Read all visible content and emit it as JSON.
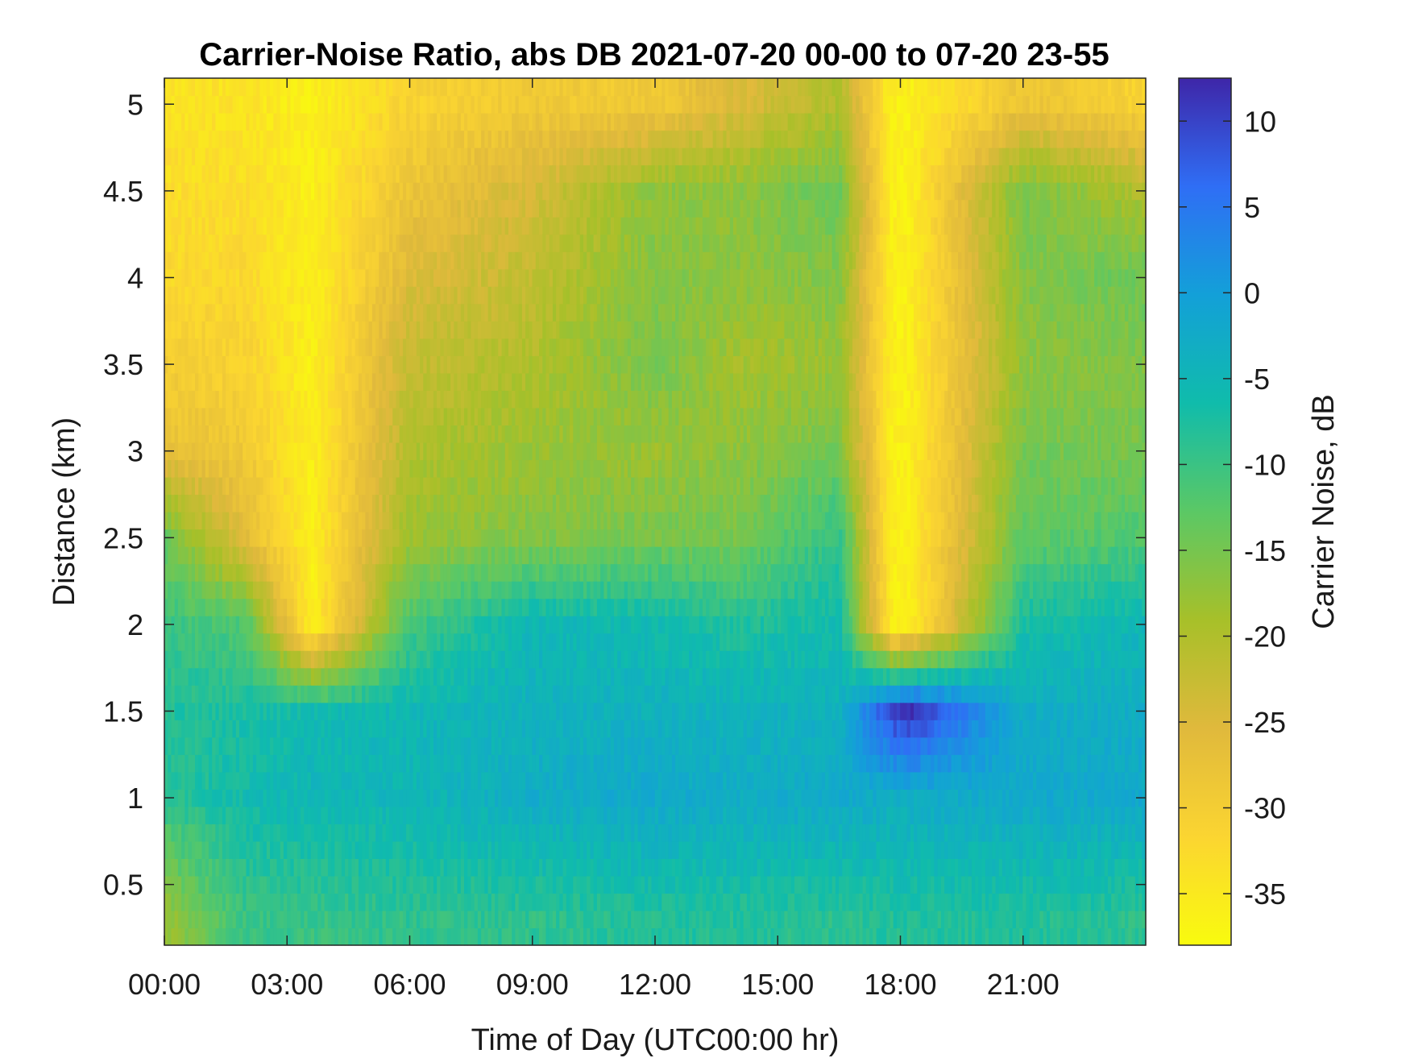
{
  "chart_data": {
    "type": "heatmap",
    "title": "Carrier-Noise Ratio, abs DB 2021-07-20 00-00 to 07-20 23-55",
    "xlabel": "Time of Day (UTC00:00 hr)",
    "ylabel": "Distance (km)",
    "colorbar_label": "Carrier Noise, dB",
    "x_ticks": [
      "00:00",
      "03:00",
      "06:00",
      "09:00",
      "12:00",
      "15:00",
      "18:00",
      "21:00"
    ],
    "x_tick_hours": [
      0,
      3,
      6,
      9,
      12,
      15,
      18,
      21
    ],
    "xlim_hours": [
      0,
      24
    ],
    "y_ticks": [
      "0.5",
      "1",
      "1.5",
      "2",
      "2.5",
      "3",
      "3.5",
      "4",
      "4.5",
      "5"
    ],
    "y_tick_values": [
      0.5,
      1,
      1.5,
      2,
      2.5,
      3,
      3.5,
      4,
      4.5,
      5
    ],
    "ylim": [
      0.15,
      5.15
    ],
    "colorbar_ticks": [
      "10",
      "5",
      "0",
      "-5",
      "-10",
      "-15",
      "-20",
      "-25",
      "-30",
      "-35"
    ],
    "colorbar_tick_values": [
      10,
      5,
      0,
      -5,
      -10,
      -15,
      -20,
      -25,
      -30,
      -35
    ],
    "clim": [
      -38,
      12.5
    ],
    "colormap": "parula",
    "time_step_hours": 0.0833,
    "range_step_km": 0.1,
    "description_grid_sample": {
      "times_hours": [
        0,
        2,
        3.6,
        6,
        9,
        12,
        14,
        16.5,
        17.8,
        18.2,
        21,
        23.9
      ],
      "ranges_km": [
        0.3,
        1,
        1.5,
        2,
        2.5,
        3,
        3.5,
        4,
        4.5,
        5
      ],
      "cnr_db": [
        [
          -18,
          -9,
          -8,
          -10,
          -14,
          -27,
          -30,
          -32,
          -33,
          -34
        ],
        [
          -10,
          -6,
          -7,
          -12,
          -26,
          -29,
          -31,
          -32,
          -33,
          -34
        ],
        [
          -10,
          -5,
          -6,
          -36,
          -36,
          -36,
          -36,
          -36,
          -36,
          -36
        ],
        [
          -9,
          -5,
          -5,
          -11,
          -18,
          -20,
          -22,
          -25,
          -28,
          -31
        ],
        [
          -9,
          -3,
          -4,
          -5,
          -16,
          -18,
          -20,
          -22,
          -24,
          -29
        ],
        [
          -8,
          -2,
          -4,
          -6,
          -15,
          -18,
          -15,
          -16,
          -17,
          -29
        ],
        [
          -8,
          -3,
          -4,
          -8,
          -15,
          -17,
          -19,
          -17,
          -17,
          -25
        ],
        [
          -9,
          -2,
          -4,
          -6,
          -9,
          -15,
          -18,
          -16,
          -14,
          -20
        ],
        [
          -8,
          -3,
          10,
          -36,
          -36,
          -36,
          -36,
          -36,
          -36,
          -36
        ],
        [
          -8,
          -3,
          12,
          -36,
          -36,
          -36,
          -36,
          -36,
          -36,
          -36
        ],
        [
          -8,
          -2,
          -3,
          -7,
          -13,
          -15,
          -17,
          -16,
          -15,
          -28
        ],
        [
          -9,
          -2,
          -3,
          -5,
          -12,
          -15,
          -16,
          -14,
          -20,
          -31
        ]
      ]
    }
  }
}
